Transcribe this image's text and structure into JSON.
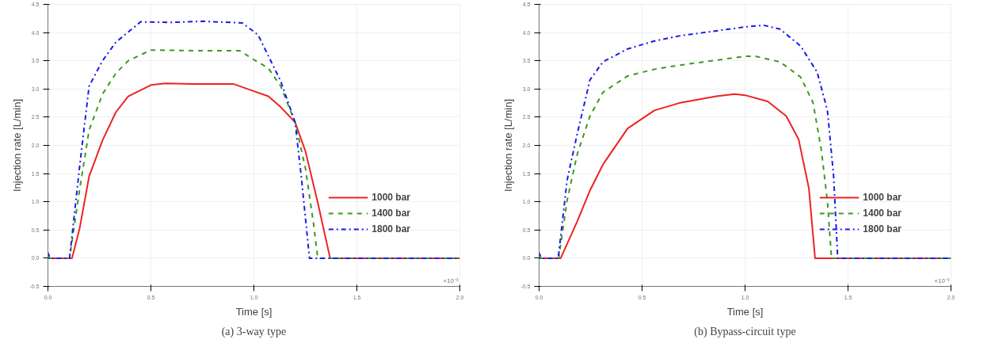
{
  "chart_data": [
    {
      "type": "line",
      "title": "(a) 3-way type",
      "xlabel": "Time [s]",
      "ylabel": "Injection rate [L/min]",
      "annotations": [
        "×10⁻³"
      ],
      "xlim": [
        0,
        2.0
      ],
      "ylim": [
        -0.5,
        4.5
      ],
      "xticks": [
        {
          "value": 0,
          "label": "0.0"
        },
        {
          "value": 0.5,
          "label": "0.5"
        },
        {
          "value": 1.0,
          "label": "1.0"
        },
        {
          "value": 1.5,
          "label": "1.5"
        },
        {
          "value": 2.0,
          "label": "2.0"
        }
      ],
      "yticks": [
        {
          "value": -0.5,
          "label": "-0.5"
        },
        {
          "value": 0,
          "label": "0.0"
        },
        {
          "value": 0.5,
          "label": "0.5"
        },
        {
          "value": 1.0,
          "label": "1.0"
        },
        {
          "value": 1.5,
          "label": "1.5"
        },
        {
          "value": 2.0,
          "label": "2.0"
        },
        {
          "value": 2.5,
          "label": "2.5"
        },
        {
          "value": 3.0,
          "label": "3.0"
        },
        {
          "value": 3.5,
          "label": "3.5"
        },
        {
          "value": 4.0,
          "label": "4.0"
        },
        {
          "value": 4.5,
          "label": "4.5"
        }
      ],
      "grid": true,
      "legend": "bottom right",
      "series": [
        {
          "name": "1000 bar",
          "color": "#ee2222",
          "line_style": "solid",
          "x": [
            0,
            0.117,
            0.154,
            0.2,
            0.265,
            0.33,
            0.39,
            0.5,
            0.57,
            0.7,
            0.9,
            1.0,
            1.07,
            1.13,
            1.2,
            1.25,
            1.31,
            1.37,
            2.0
          ],
          "values": [
            0,
            0,
            0.53,
            1.45,
            2.09,
            2.59,
            2.87,
            3.07,
            3.1,
            3.09,
            3.09,
            2.96,
            2.87,
            2.68,
            2.41,
            1.9,
            0.99,
            0,
            0
          ]
        },
        {
          "name": "1400 bar",
          "color": "#3a9a20",
          "line_style": "dashed",
          "x": [
            0,
            0.105,
            0.154,
            0.2,
            0.265,
            0.33,
            0.39,
            0.5,
            0.7,
            0.93,
            1.0,
            1.07,
            1.13,
            1.2,
            1.25,
            1.29,
            1.31,
            2.0
          ],
          "values": [
            0,
            0,
            1.22,
            2.27,
            2.91,
            3.28,
            3.5,
            3.69,
            3.68,
            3.68,
            3.52,
            3.37,
            3.05,
            2.41,
            1.6,
            0.6,
            0,
            0
          ]
        },
        {
          "name": "1800 bar",
          "color": "#1a1aee",
          "line_style": "dashdot",
          "x": [
            0,
            0.01,
            0.105,
            0.154,
            0.2,
            0.265,
            0.33,
            0.45,
            0.6,
            0.75,
            0.944,
            1.02,
            1.13,
            1.2,
            1.23,
            1.27,
            2.0
          ],
          "values": [
            0.1,
            0,
            0,
            1.63,
            3.05,
            3.5,
            3.83,
            4.19,
            4.18,
            4.2,
            4.17,
            3.96,
            3.14,
            2.41,
            1.45,
            0,
            0
          ]
        }
      ]
    },
    {
      "type": "line",
      "title": "(b) Bypass-circuit type",
      "xlabel": "Time [s]",
      "ylabel": "Injection rate [L/min]",
      "annotations": [
        "×10⁻³"
      ],
      "xlim": [
        0,
        2.0
      ],
      "ylim": [
        -0.5,
        4.5
      ],
      "xticks": [
        {
          "value": 0,
          "label": "0.0"
        },
        {
          "value": 0.5,
          "label": "0.5"
        },
        {
          "value": 1.0,
          "label": "1.0"
        },
        {
          "value": 1.5,
          "label": "1.5"
        },
        {
          "value": 2.0,
          "label": "2.0"
        }
      ],
      "yticks": [
        {
          "value": -0.5,
          "label": "-0.5"
        },
        {
          "value": 0,
          "label": "0.0"
        },
        {
          "value": 0.5,
          "label": "0.5"
        },
        {
          "value": 1.0,
          "label": "1.0"
        },
        {
          "value": 1.5,
          "label": "1.5"
        },
        {
          "value": 2.0,
          "label": "2.0"
        },
        {
          "value": 2.5,
          "label": "2.5"
        },
        {
          "value": 3.0,
          "label": "3.0"
        },
        {
          "value": 3.5,
          "label": "3.5"
        },
        {
          "value": 4.0,
          "label": "4.0"
        },
        {
          "value": 4.5,
          "label": "4.5"
        }
      ],
      "grid": true,
      "legend": "bottom right",
      "series": [
        {
          "name": "1000 bar",
          "color": "#ee2222",
          "line_style": "solid",
          "x": [
            0,
            0.105,
            0.185,
            0.247,
            0.31,
            0.43,
            0.56,
            0.68,
            0.86,
            0.95,
            1.0,
            1.11,
            1.2,
            1.26,
            1.31,
            1.34,
            2.0
          ],
          "values": [
            0,
            0,
            0.65,
            1.2,
            1.66,
            2.3,
            2.62,
            2.75,
            2.87,
            2.91,
            2.89,
            2.78,
            2.52,
            2.11,
            1.24,
            0,
            0
          ]
        },
        {
          "name": "1400 bar",
          "color": "#3a9a20",
          "line_style": "dashed",
          "x": [
            0,
            0.095,
            0.136,
            0.185,
            0.247,
            0.31,
            0.43,
            0.56,
            0.68,
            0.86,
            1.0,
            1.05,
            1.17,
            1.27,
            1.33,
            1.37,
            1.4,
            1.42,
            2.0
          ],
          "values": [
            0,
            0,
            1.02,
            1.84,
            2.52,
            2.94,
            3.23,
            3.35,
            3.42,
            3.51,
            3.58,
            3.58,
            3.48,
            3.21,
            2.76,
            1.93,
            1.01,
            0,
            0
          ]
        },
        {
          "name": "1800 bar",
          "color": "#1a1aee",
          "line_style": "dashdot",
          "x": [
            0,
            0.01,
            0.093,
            0.136,
            0.185,
            0.247,
            0.31,
            0.43,
            0.56,
            0.68,
            0.86,
            1.0,
            1.09,
            1.17,
            1.27,
            1.35,
            1.4,
            1.43,
            1.45,
            2.0
          ],
          "values": [
            0.1,
            0,
            0,
            1.38,
            2.2,
            3.16,
            3.48,
            3.71,
            3.85,
            3.94,
            4.03,
            4.1,
            4.13,
            4.06,
            3.76,
            3.3,
            2.62,
            1.46,
            0,
            0
          ]
        }
      ]
    }
  ]
}
